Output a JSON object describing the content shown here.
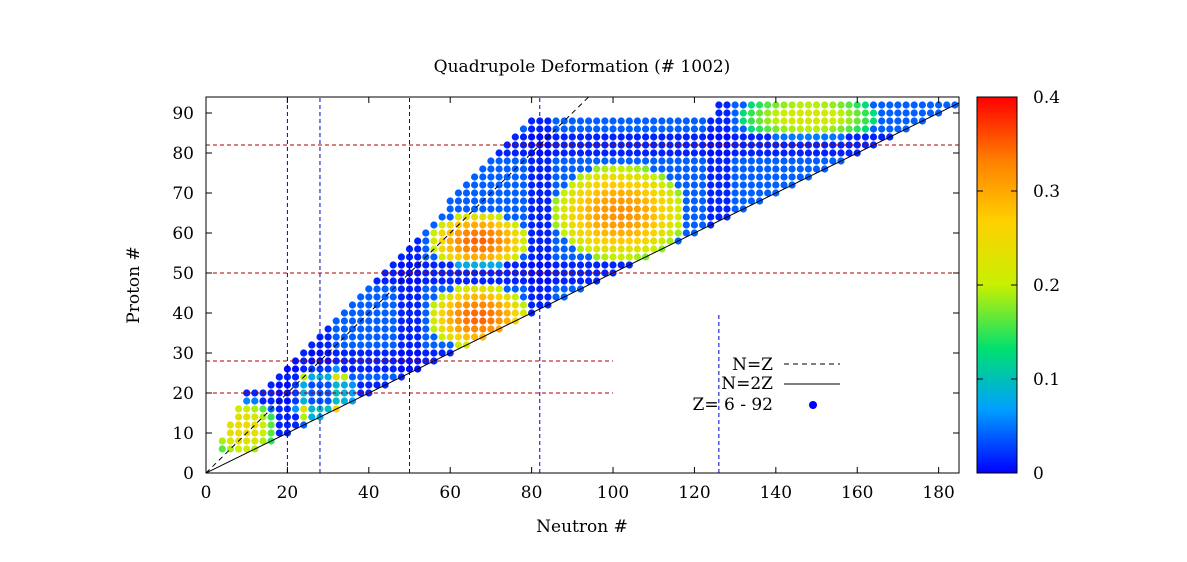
{
  "chart_data": {
    "type": "scatter",
    "title": "Quadrupole Deformation (# 1002)",
    "xlabel": "Neutron #",
    "ylabel": "Proton #",
    "xlim": [
      0,
      185
    ],
    "ylim": [
      0,
      94
    ],
    "x_ticks": [
      "0",
      "20",
      "40",
      "60",
      "80",
      "100",
      "120",
      "140",
      "160",
      "180"
    ],
    "y_ticks": [
      "0",
      "10",
      "20",
      "30",
      "40",
      "50",
      "60",
      "70",
      "80",
      "90"
    ],
    "colorbar": {
      "min": 0,
      "max": 0.4,
      "ticks": [
        "0",
        "0.1",
        "0.2",
        "0.3",
        "0.4"
      ],
      "colors": [
        "#0000ff",
        "#00a0ff",
        "#00e070",
        "#c8f000",
        "#ffd000",
        "#ff8000",
        "#ff0000"
      ]
    },
    "legend": {
      "position": "bottom-right",
      "entries": [
        {
          "label": "N=Z",
          "style": "dashed"
        },
        {
          "label": "N=2Z",
          "style": "solid"
        },
        {
          "label": "Z= 6 - 92",
          "style": "point"
        }
      ]
    },
    "magic_neutrons": [
      20,
      28,
      50,
      82,
      126
    ],
    "magic_protons": [
      20,
      28,
      50,
      82
    ],
    "regions": [
      {
        "n_range": [
          4,
          14
        ],
        "z_range": [
          6,
          16
        ],
        "deformation": 0.25
      },
      {
        "n_range": [
          24,
          34
        ],
        "z_range": [
          14,
          24
        ],
        "deformation": 0.3
      },
      {
        "n_range": [
          58,
          76
        ],
        "z_range": [
          34,
          44
        ],
        "deformation": 0.35
      },
      {
        "n_range": [
          58,
          76
        ],
        "z_range": [
          54,
          62
        ],
        "deformation": 0.35
      },
      {
        "n_range": [
          88,
          115
        ],
        "z_range": [
          56,
          74
        ],
        "deformation": 0.32
      },
      {
        "n_range": [
          134,
          162
        ],
        "z_range": [
          86,
          92
        ],
        "deformation": 0.22
      }
    ]
  }
}
